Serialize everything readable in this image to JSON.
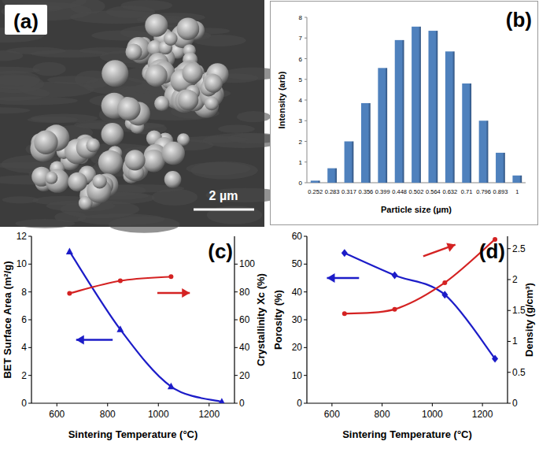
{
  "chart_data": [
    {
      "type": "image",
      "title": "(a)",
      "annotations": [
        "2 µm"
      ]
    },
    {
      "type": "bar",
      "title": "(b)",
      "xlabel": "Particle size (µm)",
      "ylabel": "Intensity (arb)",
      "categories": [
        "0.252",
        "0.283",
        "0.317",
        "0.356",
        "0.399",
        "0.448",
        "0.502",
        "0.564",
        "0.632",
        "0.71",
        "0.796",
        "0.893",
        "1"
      ],
      "values": [
        0.1,
        0.7,
        2.0,
        3.85,
        5.55,
        6.9,
        7.55,
        7.35,
        6.35,
        4.8,
        3.0,
        1.45,
        0.35
      ],
      "color": "#4f81bd",
      "ylim": [
        0,
        8
      ],
      "yticks": [
        0,
        1,
        2,
        3,
        4,
        5,
        6,
        7,
        8
      ]
    },
    {
      "type": "line",
      "title": "(c)",
      "xlabel": "Sintering Temperature (°C)",
      "ylabel": "BET Surface Area (m²/g)",
      "y2label": "Crystallinity Xc (%)",
      "x": [
        650,
        850,
        1050,
        1250
      ],
      "xlim": [
        500,
        1300
      ],
      "xticks": [
        600,
        800,
        1000,
        1200
      ],
      "ylim": [
        0,
        12
      ],
      "yticks": [
        0,
        2,
        4,
        6,
        8,
        10,
        12
      ],
      "y2lim": [
        0,
        120
      ],
      "y2ticks": [
        0,
        20,
        40,
        60,
        80,
        100
      ],
      "series": [
        {
          "color": "#1c1cc8",
          "marker": "triangle",
          "values": [
            10.9,
            5.3,
            1.2,
            0.1
          ]
        },
        {
          "color": "#d42222",
          "marker": "circle",
          "axis": "y2",
          "values": [
            79,
            88,
            91,
            null
          ]
        }
      ]
    },
    {
      "type": "line",
      "title": "(d)",
      "xlabel": "Sintering Temperature (°C)",
      "ylabel": "Porosity (%)",
      "y2label": "Density (g/cm³)",
      "x": [
        650,
        850,
        1050,
        1250
      ],
      "xlim": [
        500,
        1300
      ],
      "xticks": [
        600,
        800,
        1000,
        1200
      ],
      "ylim": [
        0,
        60
      ],
      "yticks": [
        0,
        10,
        20,
        30,
        40,
        50,
        60
      ],
      "y2lim": [
        0,
        2.7
      ],
      "y2ticks": [
        0,
        0.5,
        1,
        1.5,
        2,
        2.5
      ],
      "series": [
        {
          "color": "#1c1cc8",
          "marker": "diamond",
          "values": [
            54,
            46,
            39,
            16
          ]
        },
        {
          "color": "#d42222",
          "marker": "circle",
          "axis": "y2",
          "values": [
            1.45,
            1.52,
            1.95,
            2.65
          ]
        }
      ]
    }
  ]
}
